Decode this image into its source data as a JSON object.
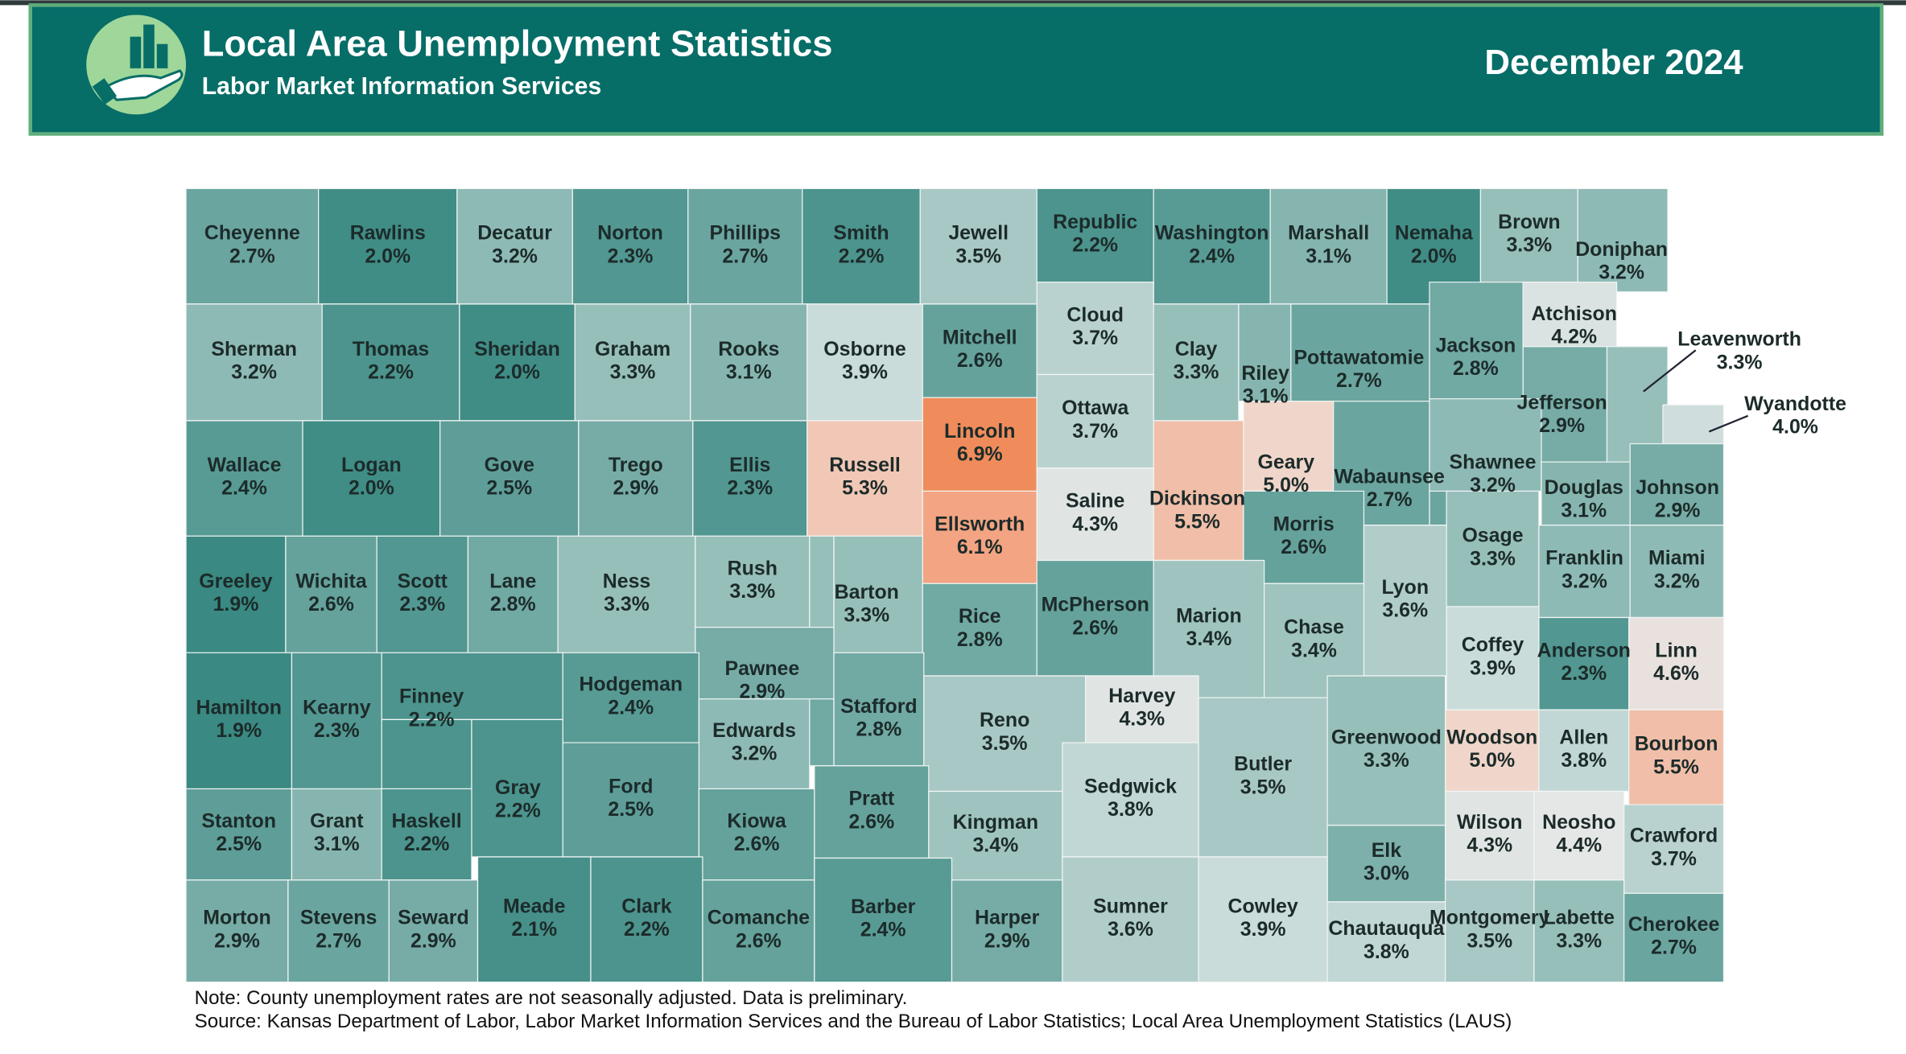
{
  "header": {
    "title": "Local Area Unemployment Statistics",
    "subtitle": "Labor Market Information Services",
    "date": "December 2024"
  },
  "counties": [
    {
      "name": "Cheyenne",
      "rate": "2.7%"
    },
    {
      "name": "Rawlins",
      "rate": "2.0%"
    },
    {
      "name": "Decatur",
      "rate": "3.2%"
    },
    {
      "name": "Norton",
      "rate": "2.3%"
    },
    {
      "name": "Phillips",
      "rate": "2.7%"
    },
    {
      "name": "Smith",
      "rate": "2.2%"
    },
    {
      "name": "Jewell",
      "rate": "3.5%"
    },
    {
      "name": "Republic",
      "rate": "2.2%"
    },
    {
      "name": "Washington",
      "rate": "2.4%"
    },
    {
      "name": "Marshall",
      "rate": "3.1%"
    },
    {
      "name": "Nemaha",
      "rate": "2.0%"
    },
    {
      "name": "Brown",
      "rate": "3.3%"
    },
    {
      "name": "Doniphan",
      "rate": "3.2%"
    },
    {
      "name": "Sherman",
      "rate": "3.2%"
    },
    {
      "name": "Thomas",
      "rate": "2.2%"
    },
    {
      "name": "Sheridan",
      "rate": "2.0%"
    },
    {
      "name": "Graham",
      "rate": "3.3%"
    },
    {
      "name": "Rooks",
      "rate": "3.1%"
    },
    {
      "name": "Osborne",
      "rate": "3.9%"
    },
    {
      "name": "Mitchell",
      "rate": "2.6%"
    },
    {
      "name": "Cloud",
      "rate": "3.7%"
    },
    {
      "name": "Clay",
      "rate": "3.3%"
    },
    {
      "name": "Riley",
      "rate": "3.1%"
    },
    {
      "name": "Pottawatomie",
      "rate": "2.7%"
    },
    {
      "name": "Jackson",
      "rate": "2.8%"
    },
    {
      "name": "Atchison",
      "rate": "4.2%"
    },
    {
      "name": "Jefferson",
      "rate": "2.9%"
    },
    {
      "name": "Leavenworth",
      "rate": "3.3%"
    },
    {
      "name": "Wyandotte",
      "rate": "4.0%"
    },
    {
      "name": "Wallace",
      "rate": "2.4%"
    },
    {
      "name": "Logan",
      "rate": "2.0%"
    },
    {
      "name": "Gove",
      "rate": "2.5%"
    },
    {
      "name": "Trego",
      "rate": "2.9%"
    },
    {
      "name": "Ellis",
      "rate": "2.3%"
    },
    {
      "name": "Russell",
      "rate": "5.3%"
    },
    {
      "name": "Lincoln",
      "rate": "6.9%"
    },
    {
      "name": "Ottawa",
      "rate": "3.7%"
    },
    {
      "name": "Dickinson",
      "rate": "5.5%"
    },
    {
      "name": "Geary",
      "rate": "5.0%"
    },
    {
      "name": "Wabaunsee",
      "rate": "2.7%"
    },
    {
      "name": "Shawnee",
      "rate": "3.2%"
    },
    {
      "name": "Douglas",
      "rate": "3.1%"
    },
    {
      "name": "Johnson",
      "rate": "2.9%"
    },
    {
      "name": "Ellsworth",
      "rate": "6.1%"
    },
    {
      "name": "Saline",
      "rate": "4.3%"
    },
    {
      "name": "Morris",
      "rate": "2.6%"
    },
    {
      "name": "Lyon",
      "rate": "3.6%"
    },
    {
      "name": "Osage",
      "rate": "3.3%"
    },
    {
      "name": "Franklin",
      "rate": "3.2%"
    },
    {
      "name": "Miami",
      "rate": "3.2%"
    },
    {
      "name": "Greeley",
      "rate": "1.9%"
    },
    {
      "name": "Wichita",
      "rate": "2.6%"
    },
    {
      "name": "Scott",
      "rate": "2.3%"
    },
    {
      "name": "Lane",
      "rate": "2.8%"
    },
    {
      "name": "Ness",
      "rate": "3.3%"
    },
    {
      "name": "Rush",
      "rate": "3.3%"
    },
    {
      "name": "Barton",
      "rate": "3.3%"
    },
    {
      "name": "Rice",
      "rate": "2.8%"
    },
    {
      "name": "McPherson",
      "rate": "2.6%"
    },
    {
      "name": "Marion",
      "rate": "3.4%"
    },
    {
      "name": "Chase",
      "rate": "3.4%"
    },
    {
      "name": "Coffey",
      "rate": "3.9%"
    },
    {
      "name": "Anderson",
      "rate": "2.3%"
    },
    {
      "name": "Linn",
      "rate": "4.6%"
    },
    {
      "name": "Pawnee",
      "rate": "2.9%"
    },
    {
      "name": "Stafford",
      "rate": "2.8%"
    },
    {
      "name": "Hamilton",
      "rate": "1.9%"
    },
    {
      "name": "Kearny",
      "rate": "2.3%"
    },
    {
      "name": "Finney",
      "rate": "2.2%"
    },
    {
      "name": "Hodgeman",
      "rate": "2.4%"
    },
    {
      "name": "Gray",
      "rate": "2.2%"
    },
    {
      "name": "Edwards",
      "rate": "3.2%"
    },
    {
      "name": "Ford",
      "rate": "2.5%"
    },
    {
      "name": "Reno",
      "rate": "3.5%"
    },
    {
      "name": "Harvey",
      "rate": "4.3%"
    },
    {
      "name": "Butler",
      "rate": "3.5%"
    },
    {
      "name": "Greenwood",
      "rate": "3.3%"
    },
    {
      "name": "Woodson",
      "rate": "5.0%"
    },
    {
      "name": "Allen",
      "rate": "3.8%"
    },
    {
      "name": "Bourbon",
      "rate": "5.5%"
    },
    {
      "name": "Stanton",
      "rate": "2.5%"
    },
    {
      "name": "Grant",
      "rate": "3.1%"
    },
    {
      "name": "Haskell",
      "rate": "2.2%"
    },
    {
      "name": "Kiowa",
      "rate": "2.6%"
    },
    {
      "name": "Pratt",
      "rate": "2.6%"
    },
    {
      "name": "Kingman",
      "rate": "3.4%"
    },
    {
      "name": "Sedgwick",
      "rate": "3.8%"
    },
    {
      "name": "Elk",
      "rate": "3.0%"
    },
    {
      "name": "Wilson",
      "rate": "4.3%"
    },
    {
      "name": "Neosho",
      "rate": "4.4%"
    },
    {
      "name": "Crawford",
      "rate": "3.7%"
    },
    {
      "name": "Morton",
      "rate": "2.9%"
    },
    {
      "name": "Stevens",
      "rate": "2.7%"
    },
    {
      "name": "Seward",
      "rate": "2.9%"
    },
    {
      "name": "Meade",
      "rate": "2.1%"
    },
    {
      "name": "Clark",
      "rate": "2.2%"
    },
    {
      "name": "Comanche",
      "rate": "2.6%"
    },
    {
      "name": "Barber",
      "rate": "2.4%"
    },
    {
      "name": "Harper",
      "rate": "2.9%"
    },
    {
      "name": "Sumner",
      "rate": "3.6%"
    },
    {
      "name": "Cowley",
      "rate": "3.9%"
    },
    {
      "name": "Chautauqua",
      "rate": "3.8%"
    },
    {
      "name": "Montgomery",
      "rate": "3.5%"
    },
    {
      "name": "Labette",
      "rate": "3.3%"
    },
    {
      "name": "Cherokee",
      "rate": "2.7%"
    }
  ],
  "notes": [
    "Note: County unemployment rates are not seasonally adjusted. Data is preliminary.",
    "Source: Kansas Department of Labor, Labor Market Information Services and the Bureau of Labor Statistics; Local Area Unemployment Statistics (LAUS)"
  ]
}
